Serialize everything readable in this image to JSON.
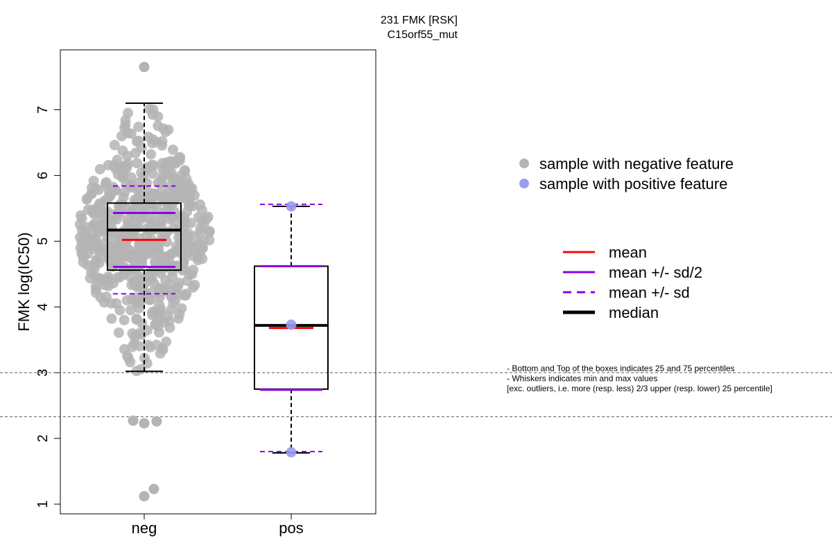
{
  "chart_data": {
    "type": "box",
    "title": "231 FMK [RSK]",
    "subtitle": "C15orf55_mut",
    "ylabel": "FMK log(IC50)",
    "xlabel": "",
    "categories": [
      "neg",
      "pos"
    ],
    "y_ticks": [
      1,
      2,
      3,
      4,
      5,
      6,
      7
    ],
    "ylim": [
      0.85,
      7.85
    ],
    "grid": false,
    "reference_lines": [
      3.0,
      2.33
    ],
    "groups": [
      {
        "name": "neg",
        "q1": 4.56,
        "median": 5.17,
        "q3": 5.58,
        "whisker_low": 3.02,
        "whisker_high": 7.1,
        "mean": 5.02,
        "mean_plus_half_sd": 5.43,
        "mean_minus_half_sd": 4.61,
        "mean_plus_sd": 5.84,
        "mean_minus_sd": 4.2,
        "n_points_estimate": 600,
        "outliers": [
          7.65,
          2.27,
          2.23,
          2.26,
          1.12,
          1.23
        ]
      },
      {
        "name": "pos",
        "q1": 2.75,
        "median": 3.72,
        "q3": 4.62,
        "whisker_low": 1.78,
        "whisker_high": 5.53,
        "mean": 3.68,
        "mean_plus_half_sd": 4.62,
        "mean_minus_half_sd": 2.74,
        "mean_plus_sd": 5.56,
        "mean_minus_sd": 1.8,
        "points": [
          5.53,
          3.73,
          1.79
        ]
      }
    ],
    "legend_points": [
      {
        "label": "sample with negative feature",
        "color": "#b4b4b4"
      },
      {
        "label": "sample with positive feature",
        "color": "#9b9bf0"
      }
    ],
    "legend_lines": [
      {
        "label": "mean",
        "color": "#ff0000",
        "style": "solid"
      },
      {
        "label": "mean +/- sd/2",
        "color": "#8b00e6",
        "style": "solid"
      },
      {
        "label": "mean +/- sd",
        "color": "#8b00e6",
        "style": "dashed"
      },
      {
        "label": "median",
        "color": "#000000",
        "style": "solid-thick"
      }
    ],
    "notes": [
      "- Bottom and Top of the boxes indicates 25 and 75 percentiles",
      "- Whiskers indicates min and max values",
      "[exc. outliers, i.e. more (resp. less) 2/3 upper (resp. lower) 25 percentile]"
    ],
    "colors": {
      "negative": "#b4b4b4",
      "positive": "#9b9bf0",
      "mean": "#ff0000",
      "sd": "#8b00e6",
      "median": "#000000"
    }
  }
}
